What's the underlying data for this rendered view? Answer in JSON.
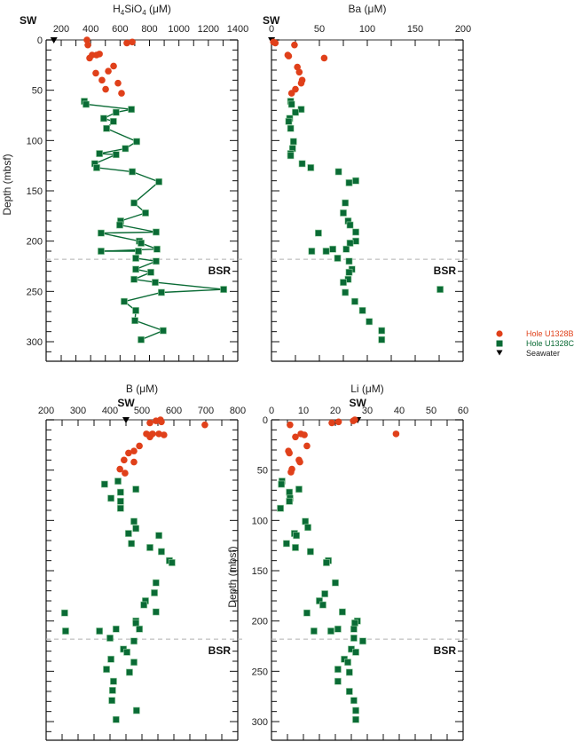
{
  "colors": {
    "hole_b": "#e0401a",
    "hole_c": "#0a6b35",
    "seawater": "#000000",
    "bsr_line": "#b0b0b0"
  },
  "legend": {
    "items": [
      {
        "label": "Hole U1328B",
        "marker": "circle",
        "color": "#e0401a"
      },
      {
        "label": "Hole U1328C",
        "marker": "square",
        "color": "#0a6b35"
      },
      {
        "label": "Seawater",
        "marker": "down-triangle",
        "color": "#000000"
      }
    ]
  },
  "chart_data": [
    {
      "type": "scatter",
      "id": "h4sio4",
      "title": "H4SiO4 (μM)",
      "title_main": "H",
      "title_sub1": "4",
      "title_mid": "SiO",
      "title_sub2": "4",
      "title_unit": " (μM)",
      "xlabel": "H4SiO4 (μM)",
      "ylabel": "Depth (mbsf)",
      "xlim": [
        100,
        1400
      ],
      "ylim": [
        320,
        0
      ],
      "xticks": [
        200,
        400,
        600,
        800,
        1000,
        1200,
        1400
      ],
      "yticks": [
        0,
        50,
        100,
        150,
        200,
        250,
        300
      ],
      "sw_label": "SW",
      "seawater_value": 150,
      "bsr_depth": 218,
      "bsr_label": "BSR",
      "hole_c_connected": true,
      "series": [
        {
          "name": "Hole U1328B",
          "points": [
            [
              375,
              0
            ],
            [
              381,
              5
            ],
            [
              646,
              3
            ],
            [
              683,
              2
            ],
            [
              393,
              18
            ],
            [
              410,
              15
            ],
            [
              440,
              15
            ],
            [
              460,
              14
            ],
            [
              435,
              33
            ],
            [
              520,
              31
            ],
            [
              556,
              26
            ],
            [
              477,
              40
            ],
            [
              586,
              43
            ],
            [
              502,
              49
            ],
            [
              610,
              53
            ]
          ]
        },
        {
          "name": "Hole U1328C",
          "points": [
            [
              357,
              61
            ],
            [
              369,
              64
            ],
            [
              677,
              69
            ],
            [
              573,
              72
            ],
            [
              489,
              78
            ],
            [
              555,
              81
            ],
            [
              508,
              88
            ],
            [
              713,
              101
            ],
            [
              636,
              108
            ],
            [
              460,
              113
            ],
            [
              573,
              114
            ],
            [
              428,
              123
            ],
            [
              441,
              127
            ],
            [
              683,
              131
            ],
            [
              864,
              141
            ],
            [
              695,
              162
            ],
            [
              773,
              172
            ],
            [
              604,
              180
            ],
            [
              598,
              184
            ],
            [
              845,
              191
            ],
            [
              471,
              192
            ],
            [
              731,
              200
            ],
            [
              743,
              202
            ],
            [
              851,
              208
            ],
            [
              471,
              210
            ],
            [
              725,
              210
            ],
            [
              707,
              217
            ],
            [
              845,
              220
            ],
            [
              707,
              228
            ],
            [
              809,
              231
            ],
            [
              695,
              238
            ],
            [
              839,
              241
            ],
            [
              1304,
              248
            ],
            [
              881,
              251
            ],
            [
              628,
              260
            ],
            [
              707,
              269
            ],
            [
              701,
              279
            ],
            [
              893,
              289
            ],
            [
              743,
              298
            ]
          ]
        }
      ]
    },
    {
      "type": "scatter",
      "id": "ba",
      "title": "Ba (μM)",
      "xlabel": "Ba (μM)",
      "ylabel": "",
      "xlim": [
        0,
        200
      ],
      "ylim": [
        320,
        0
      ],
      "xticks": [
        0,
        50,
        100,
        150,
        200
      ],
      "yticks": [
        0,
        50,
        100,
        150,
        200,
        250,
        300
      ],
      "sw_label": "SW",
      "seawater_value": 0.1,
      "bsr_depth": 218,
      "bsr_label": "BSR",
      "hole_c_connected": false,
      "series": [
        {
          "name": "Hole U1328B",
          "points": [
            [
              2,
              2
            ],
            [
              4,
              3
            ],
            [
              24,
              5
            ],
            [
              17,
              15
            ],
            [
              18,
              16
            ],
            [
              55,
              18
            ],
            [
              27,
              27
            ],
            [
              29,
              32
            ],
            [
              32,
              40
            ],
            [
              31,
              43
            ],
            [
              25,
              49
            ],
            [
              21,
              53
            ]
          ]
        },
        {
          "name": "Hole U1328C",
          "points": [
            [
              20,
              61
            ],
            [
              21,
              64
            ],
            [
              31,
              69
            ],
            [
              25,
              72
            ],
            [
              19,
              78
            ],
            [
              18,
              81
            ],
            [
              20,
              88
            ],
            [
              23,
              101
            ],
            [
              22,
              108
            ],
            [
              20,
              113
            ],
            [
              20,
              115
            ],
            [
              32,
              123
            ],
            [
              41,
              127
            ],
            [
              70,
              131
            ],
            [
              88,
              140
            ],
            [
              81,
              142
            ],
            [
              77,
              162
            ],
            [
              75,
              172
            ],
            [
              80,
              180
            ],
            [
              82,
              184
            ],
            [
              88,
              191
            ],
            [
              49,
              192
            ],
            [
              88,
              200
            ],
            [
              82,
              202
            ],
            [
              42,
              210
            ],
            [
              57,
              210
            ],
            [
              64,
              208
            ],
            [
              78,
              208
            ],
            [
              69,
              217
            ],
            [
              81,
              220
            ],
            [
              84,
              228
            ],
            [
              81,
              231
            ],
            [
              80,
              238
            ],
            [
              75,
              241
            ],
            [
              176,
              248
            ],
            [
              77,
              251
            ],
            [
              87,
              260
            ],
            [
              95,
              269
            ],
            [
              102,
              280
            ],
            [
              115,
              289
            ],
            [
              115,
              298
            ]
          ]
        }
      ]
    },
    {
      "type": "scatter",
      "id": "b",
      "title": "B (μM)",
      "xlabel": "B (μM)",
      "ylabel": "",
      "xlim": [
        200,
        800
      ],
      "ylim": [
        318,
        0
      ],
      "xticks": [
        200,
        300,
        400,
        500,
        600,
        700,
        800
      ],
      "yticks": [
        0,
        50,
        100,
        150,
        200,
        250,
        300
      ],
      "sw_label": "SW",
      "seawater_value": 450,
      "bsr_depth": 218,
      "bsr_label": "BSR",
      "hole_c_connected": false,
      "series": [
        {
          "name": "Hole U1328B",
          "points": [
            [
              525,
              3
            ],
            [
              544,
              1
            ],
            [
              558,
              0
            ],
            [
              561,
              2
            ],
            [
              697,
              5
            ],
            [
              514,
              14
            ],
            [
              528,
              15
            ],
            [
              525,
              17
            ],
            [
              533,
              14
            ],
            [
              553,
              14
            ],
            [
              569,
              15
            ],
            [
              492,
              26
            ],
            [
              475,
              31
            ],
            [
              458,
              33
            ],
            [
              444,
              40
            ],
            [
              475,
              42
            ],
            [
              431,
              49
            ],
            [
              447,
              53
            ]
          ]
        },
        {
          "name": "Hole U1328C",
          "points": [
            [
              383,
              64
            ],
            [
              425,
              61
            ],
            [
              433,
              72
            ],
            [
              481,
              69
            ],
            [
              403,
              78
            ],
            [
              433,
              81
            ],
            [
              433,
              88
            ],
            [
              475,
              101
            ],
            [
              481,
              108
            ],
            [
              458,
              113
            ],
            [
              553,
              115
            ],
            [
              467,
              123
            ],
            [
              525,
              127
            ],
            [
              561,
              131
            ],
            [
              586,
              140
            ],
            [
              594,
              142
            ],
            [
              544,
              162
            ],
            [
              539,
              172
            ],
            [
              511,
              180
            ],
            [
              506,
              184
            ],
            [
              544,
              191
            ],
            [
              258,
              192
            ],
            [
              481,
              200
            ],
            [
              481,
              202
            ],
            [
              261,
              210
            ],
            [
              367,
              210
            ],
            [
              419,
              208
            ],
            [
              492,
              208
            ],
            [
              400,
              217
            ],
            [
              475,
              220
            ],
            [
              442,
              228
            ],
            [
              453,
              231
            ],
            [
              403,
              238
            ],
            [
              475,
              241
            ],
            [
              389,
              248
            ],
            [
              461,
              251
            ],
            [
              411,
              260
            ],
            [
              408,
              269
            ],
            [
              406,
              279
            ],
            [
              483,
              289
            ],
            [
              419,
              298
            ]
          ]
        }
      ]
    },
    {
      "type": "scatter",
      "id": "li",
      "title": "Li (μM)",
      "xlabel": "Li (μM)",
      "ylabel": "Depth (mbsf)",
      "xlim": [
        0,
        60
      ],
      "ylim": [
        318,
        0
      ],
      "xticks": [
        0,
        10,
        20,
        30,
        40,
        50,
        60
      ],
      "yticks": [
        0,
        50,
        100,
        150,
        200,
        250,
        300
      ],
      "sw_label": "SW",
      "seawater_value": 27,
      "bsr_depth": 218,
      "bsr_label": "BSR",
      "hole_c_connected": false,
      "series": [
        {
          "name": "Hole U1328B",
          "points": [
            [
              18.9,
              3
            ],
            [
              21,
              2
            ],
            [
              25.6,
              1
            ],
            [
              26.1,
              0
            ],
            [
              5.8,
              5
            ],
            [
              39,
              14
            ],
            [
              7.5,
              17
            ],
            [
              9.2,
              14
            ],
            [
              10.3,
              15
            ],
            [
              11.1,
              26
            ],
            [
              5.3,
              31
            ],
            [
              5.6,
              33
            ],
            [
              8.6,
              40
            ],
            [
              8.9,
              42
            ],
            [
              6.4,
              49
            ],
            [
              6.1,
              52
            ]
          ]
        },
        {
          "name": "Hole U1328C",
          "points": [
            [
              3.3,
              61
            ],
            [
              3.1,
              64
            ],
            [
              8.6,
              69
            ],
            [
              5.6,
              72
            ],
            [
              5.8,
              78
            ],
            [
              5.6,
              81
            ],
            [
              2.8,
              88
            ],
            [
              10.6,
              101
            ],
            [
              11.4,
              107
            ],
            [
              7.2,
              113
            ],
            [
              7.8,
              115
            ],
            [
              4.7,
              123
            ],
            [
              7.5,
              127
            ],
            [
              12.2,
              131
            ],
            [
              17.8,
              140
            ],
            [
              17.2,
              142
            ],
            [
              20,
              162
            ],
            [
              16.7,
              173
            ],
            [
              15,
              180
            ],
            [
              16.1,
              184
            ],
            [
              22.2,
              191
            ],
            [
              11.1,
              192
            ],
            [
              26.9,
              200
            ],
            [
              26.1,
              202
            ],
            [
              13.3,
              210
            ],
            [
              18.6,
              210
            ],
            [
              20.8,
              208
            ],
            [
              25.8,
              208
            ],
            [
              25.8,
              217
            ],
            [
              28.6,
              220
            ],
            [
              25,
              228
            ],
            [
              26.4,
              231
            ],
            [
              22.8,
              238
            ],
            [
              23.9,
              241
            ],
            [
              20.8,
              248
            ],
            [
              24.4,
              251
            ],
            [
              20.8,
              260
            ],
            [
              24.4,
              270
            ],
            [
              25.8,
              279
            ],
            [
              26.4,
              289
            ],
            [
              26.4,
              298
            ]
          ]
        }
      ]
    }
  ]
}
